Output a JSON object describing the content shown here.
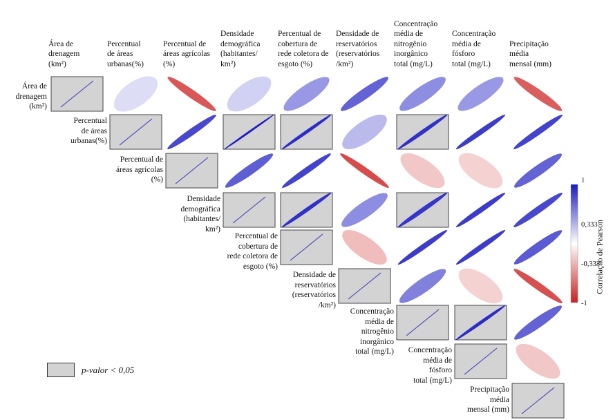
{
  "chart_data": {
    "type": "heatmap",
    "subtype": "correlogram-ellipse-upper-triangle",
    "variables": [
      [
        "Área de",
        "drenagem",
        "(km²)"
      ],
      [
        "Percentual",
        "de áreas",
        "urbanas(%)"
      ],
      [
        "Percentual de",
        "áreas agrícolas",
        "(%)"
      ],
      [
        "Densidade",
        "demográfica",
        "(habitantes/",
        "km²)"
      ],
      [
        "Percentual de",
        "cobertura de",
        "rede coletora de",
        "esgoto (%)"
      ],
      [
        "Densidade de",
        "reservatórios",
        "(reservatórios",
        "/km²)"
      ],
      [
        "Concentração",
        "média de",
        "nitrogênio",
        "inorgânico",
        "total (mg/L)"
      ],
      [
        "Concentração",
        "média de",
        "fósforo",
        "total (mg/L)"
      ],
      [
        "Precipitação",
        "média",
        "mensal (mm)"
      ]
    ],
    "cells": [
      {
        "row": 0,
        "col": 1,
        "r": 0.15,
        "significant": false
      },
      {
        "row": 0,
        "col": 2,
        "r": -0.75,
        "significant": false
      },
      {
        "row": 0,
        "col": 3,
        "r": 0.2,
        "significant": false
      },
      {
        "row": 0,
        "col": 4,
        "r": 0.45,
        "significant": false
      },
      {
        "row": 0,
        "col": 5,
        "r": 0.68,
        "significant": false
      },
      {
        "row": 0,
        "col": 6,
        "r": 0.5,
        "significant": false
      },
      {
        "row": 0,
        "col": 7,
        "r": 0.45,
        "significant": false
      },
      {
        "row": 0,
        "col": 8,
        "r": -0.72,
        "significant": false
      },
      {
        "row": 1,
        "col": 2,
        "r": 0.8,
        "significant": false
      },
      {
        "row": 1,
        "col": 3,
        "r": 0.98,
        "significant": true
      },
      {
        "row": 1,
        "col": 4,
        "r": 0.92,
        "significant": true
      },
      {
        "row": 1,
        "col": 5,
        "r": 0.3,
        "significant": false
      },
      {
        "row": 1,
        "col": 6,
        "r": 0.9,
        "significant": true
      },
      {
        "row": 1,
        "col": 7,
        "r": 0.85,
        "significant": false
      },
      {
        "row": 1,
        "col": 8,
        "r": 0.82,
        "significant": false
      },
      {
        "row": 2,
        "col": 3,
        "r": 0.7,
        "significant": false
      },
      {
        "row": 2,
        "col": 4,
        "r": 0.82,
        "significant": false
      },
      {
        "row": 2,
        "col": 5,
        "r": -0.8,
        "significant": false
      },
      {
        "row": 2,
        "col": 6,
        "r": -0.25,
        "significant": false
      },
      {
        "row": 2,
        "col": 7,
        "r": -0.2,
        "significant": false
      },
      {
        "row": 2,
        "col": 8,
        "r": 0.68,
        "significant": false
      },
      {
        "row": 3,
        "col": 4,
        "r": 0.9,
        "significant": true
      },
      {
        "row": 3,
        "col": 5,
        "r": 0.5,
        "significant": false
      },
      {
        "row": 3,
        "col": 6,
        "r": 0.88,
        "significant": true
      },
      {
        "row": 3,
        "col": 7,
        "r": 0.85,
        "significant": false
      },
      {
        "row": 3,
        "col": 8,
        "r": 0.8,
        "significant": false
      },
      {
        "row": 4,
        "col": 5,
        "r": -0.3,
        "significant": false
      },
      {
        "row": 4,
        "col": 6,
        "r": 0.85,
        "significant": false
      },
      {
        "row": 4,
        "col": 7,
        "r": 0.85,
        "significant": false
      },
      {
        "row": 4,
        "col": 8,
        "r": 0.72,
        "significant": false
      },
      {
        "row": 5,
        "col": 6,
        "r": 0.55,
        "significant": false
      },
      {
        "row": 5,
        "col": 7,
        "r": -0.2,
        "significant": false
      },
      {
        "row": 5,
        "col": 8,
        "r": -0.78,
        "significant": false
      },
      {
        "row": 6,
        "col": 7,
        "r": 0.92,
        "significant": true
      },
      {
        "row": 6,
        "col": 8,
        "r": 0.68,
        "significant": false
      },
      {
        "row": 7,
        "col": 8,
        "r": -0.25,
        "significant": false
      }
    ],
    "colorbar": {
      "title": "Correlação de Pearson",
      "ticks": [
        "1",
        "0,333",
        "-0,333",
        "-1"
      ],
      "tick_values": [
        1,
        0.333,
        -0.333,
        -1
      ],
      "high_color": "#1a1ac2",
      "mid_color": "#ffffff",
      "low_color": "#cc1f1f"
    },
    "legend": {
      "text": "p-valor  < 0,05",
      "swatch_color": "#d3d3d3"
    },
    "grid": false
  }
}
